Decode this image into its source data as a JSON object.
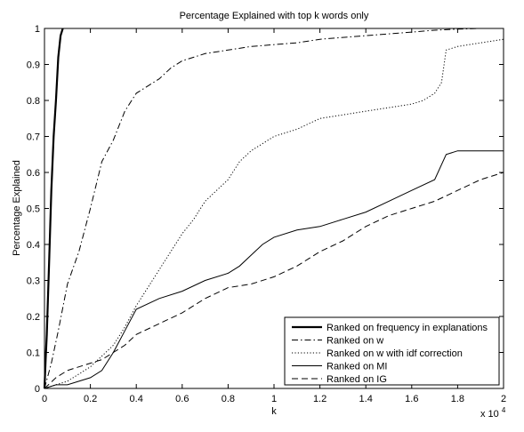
{
  "chart_data": {
    "type": "line",
    "title": "Percentage Explained with top k words only",
    "xlabel": "k",
    "ylabel": "Percentage Explained",
    "x_exponent_label": "x 10",
    "x_exponent_power": "4",
    "xlim": [
      0,
      20000
    ],
    "ylim": [
      0,
      1
    ],
    "x_ticks": [
      0,
      2000,
      4000,
      6000,
      8000,
      10000,
      12000,
      14000,
      16000,
      18000,
      20000
    ],
    "x_tick_labels": [
      "0",
      "0.2",
      "0.4",
      "0.6",
      "0.8",
      "1",
      "1.2",
      "1.4",
      "1.6",
      "1.8",
      "2"
    ],
    "y_ticks": [
      0,
      0.1,
      0.2,
      0.3,
      0.4,
      0.5,
      0.6,
      0.7,
      0.8,
      0.9,
      1
    ],
    "y_tick_labels": [
      "0",
      "0.1",
      "0.2",
      "0.3",
      "0.4",
      "0.5",
      "0.6",
      "0.7",
      "0.8",
      "0.9",
      "1"
    ],
    "grid": false,
    "legend_position": "bottom-right",
    "series": [
      {
        "name": "Ranked on frequency in explanations",
        "style": "solid-thick",
        "color": "#000000",
        "x": [
          0,
          50,
          100,
          150,
          200,
          300,
          400,
          500,
          600,
          700,
          800
        ],
        "y": [
          0,
          0.08,
          0.15,
          0.25,
          0.35,
          0.55,
          0.7,
          0.8,
          0.92,
          0.98,
          1.0
        ]
      },
      {
        "name": "Ranked on w",
        "style": "dash-dot",
        "color": "#000000",
        "x": [
          0,
          300,
          600,
          1000,
          1500,
          2000,
          2500,
          3000,
          3500,
          4000,
          4500,
          5000,
          5500,
          6000,
          6500,
          7000,
          8000,
          9000,
          10000,
          11000,
          12000,
          13000,
          14000,
          15000,
          16000,
          17000,
          18000,
          19000,
          20000
        ],
        "y": [
          0,
          0.07,
          0.16,
          0.29,
          0.38,
          0.5,
          0.63,
          0.69,
          0.77,
          0.82,
          0.84,
          0.86,
          0.89,
          0.91,
          0.92,
          0.93,
          0.94,
          0.95,
          0.955,
          0.96,
          0.97,
          0.975,
          0.98,
          0.985,
          0.99,
          0.995,
          0.998,
          1.0,
          1.0
        ]
      },
      {
        "name": "Ranked on w with idf correction",
        "style": "dotted",
        "color": "#000000",
        "x": [
          0,
          500,
          1000,
          1500,
          2000,
          2500,
          3000,
          3500,
          4000,
          5000,
          6000,
          6500,
          7000,
          7500,
          8000,
          8500,
          9000,
          9500,
          10000,
          11000,
          12000,
          13000,
          14000,
          15000,
          16000,
          16500,
          17000,
          17300,
          17500,
          18000,
          19000,
          20000
        ],
        "y": [
          0,
          0.01,
          0.02,
          0.04,
          0.06,
          0.09,
          0.12,
          0.17,
          0.23,
          0.33,
          0.43,
          0.47,
          0.52,
          0.55,
          0.58,
          0.63,
          0.66,
          0.68,
          0.7,
          0.72,
          0.75,
          0.76,
          0.77,
          0.78,
          0.79,
          0.8,
          0.82,
          0.85,
          0.94,
          0.95,
          0.96,
          0.97
        ]
      },
      {
        "name": "Ranked on MI",
        "style": "solid",
        "color": "#000000",
        "x": [
          0,
          500,
          1000,
          1500,
          2000,
          2500,
          3000,
          3500,
          4000,
          5000,
          6000,
          7000,
          8000,
          8500,
          9000,
          9500,
          10000,
          11000,
          12000,
          13000,
          14000,
          15000,
          16000,
          17000,
          17500,
          18000,
          19000,
          20000
        ],
        "y": [
          0,
          0.01,
          0.01,
          0.02,
          0.03,
          0.05,
          0.1,
          0.16,
          0.22,
          0.25,
          0.27,
          0.3,
          0.32,
          0.34,
          0.37,
          0.4,
          0.42,
          0.44,
          0.45,
          0.47,
          0.49,
          0.52,
          0.55,
          0.58,
          0.65,
          0.66,
          0.66,
          0.66
        ]
      },
      {
        "name": "Ranked on IG",
        "style": "dashed",
        "color": "#000000",
        "x": [
          0,
          500,
          1000,
          1500,
          2000,
          2500,
          3000,
          3500,
          4000,
          5000,
          6000,
          7000,
          8000,
          9000,
          10000,
          11000,
          11500,
          12000,
          13000,
          14000,
          15000,
          16000,
          17000,
          18000,
          19000,
          20000
        ],
        "y": [
          0,
          0.03,
          0.05,
          0.06,
          0.07,
          0.08,
          0.1,
          0.12,
          0.15,
          0.18,
          0.21,
          0.25,
          0.28,
          0.29,
          0.31,
          0.34,
          0.36,
          0.38,
          0.41,
          0.45,
          0.48,
          0.5,
          0.52,
          0.55,
          0.58,
          0.6
        ]
      }
    ]
  }
}
